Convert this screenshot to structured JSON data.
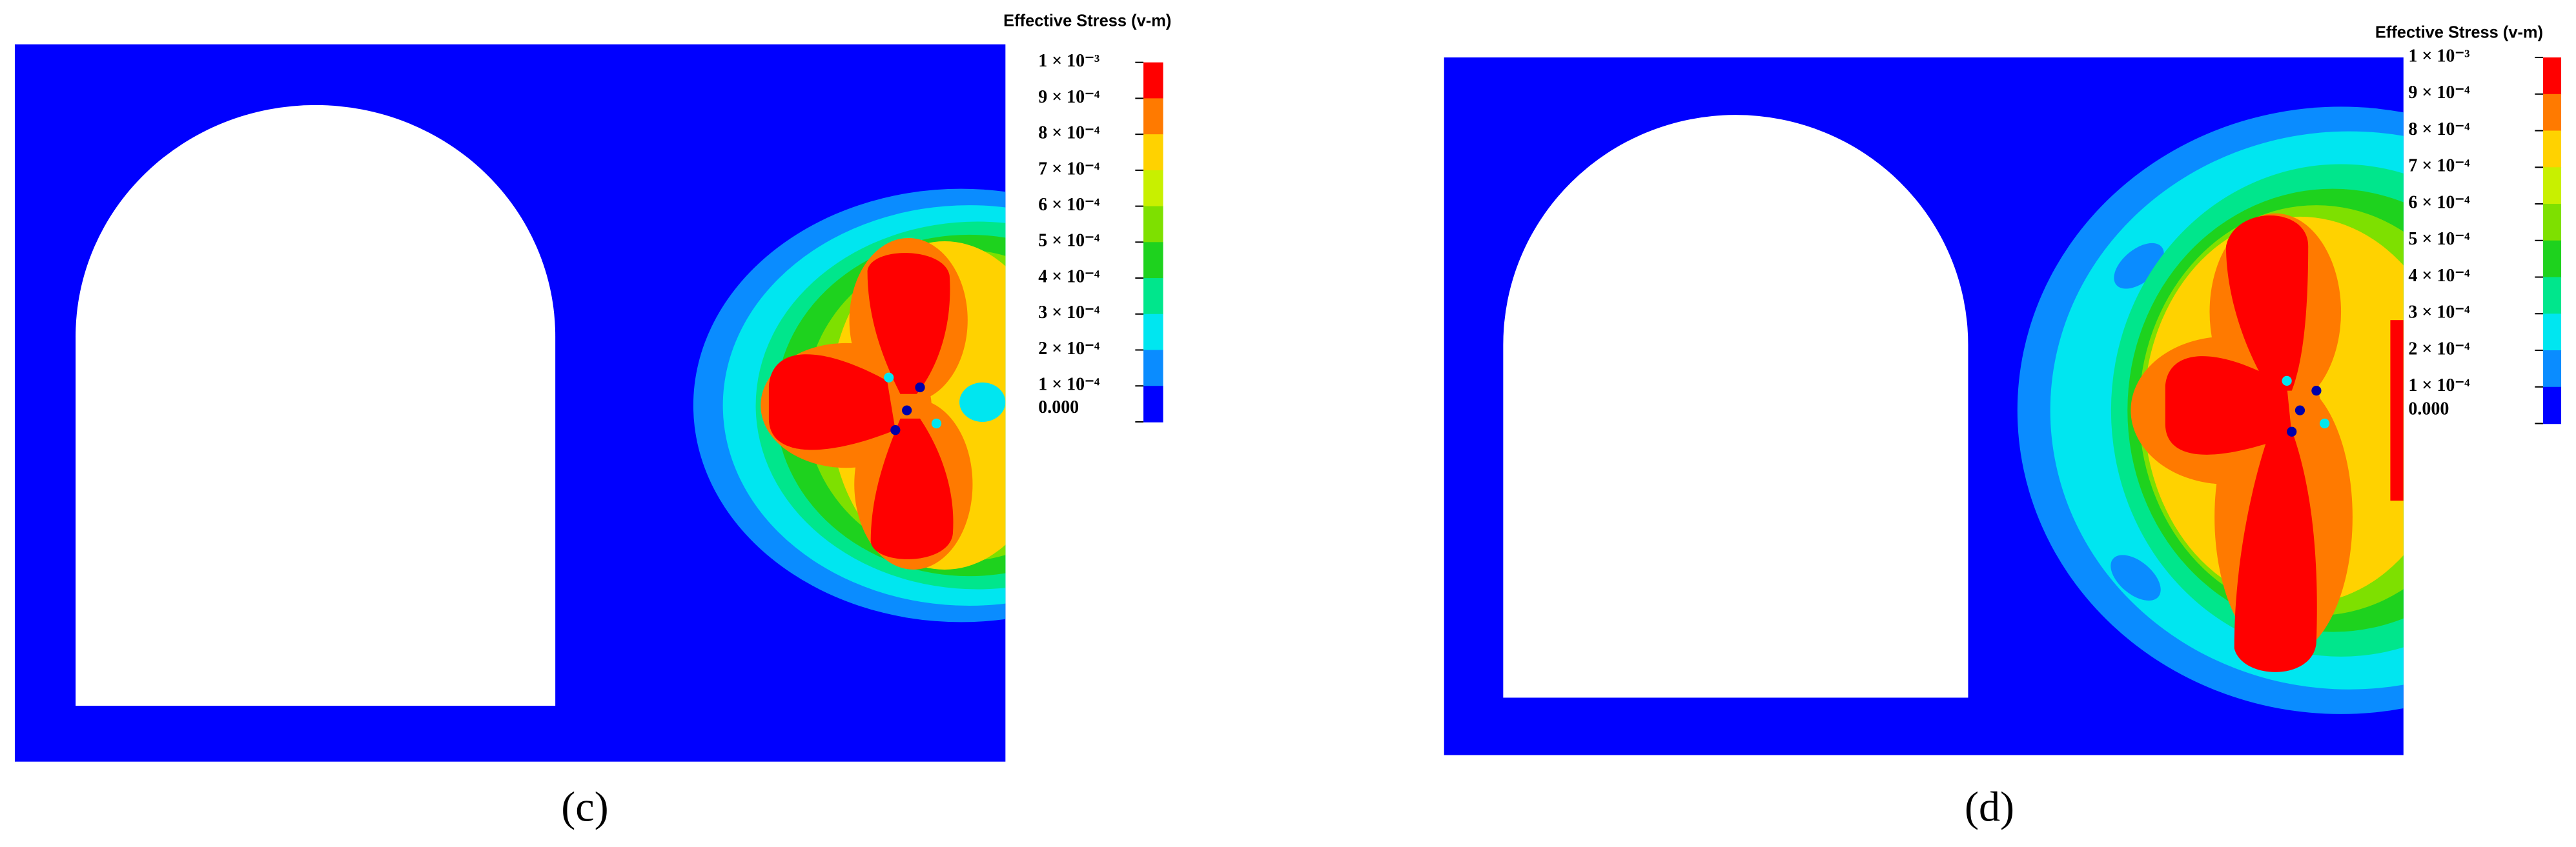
{
  "panels": [
    {
      "label": "(c)",
      "colorbar": {
        "title": "Effective Stress (v-m)",
        "labels": [
          "1 × 10⁻³",
          "9 × 10⁻⁴",
          "8 × 10⁻⁴",
          "7 × 10⁻⁴",
          "6 × 10⁻⁴",
          "5 × 10⁻⁴",
          "4 × 10⁻⁴",
          "3 × 10⁻⁴",
          "2 × 10⁻⁴",
          "1 × 10⁻⁴",
          "0.000"
        ],
        "colors": [
          "#ff0000",
          "#ff7a00",
          "#ffd200",
          "#c8f000",
          "#7ee000",
          "#1ed21e",
          "#00e68c",
          "#00e6f0",
          "#0a8cff",
          "#0000ff"
        ]
      }
    },
    {
      "label": "(d)",
      "colorbar": {
        "title": "Effective Stress (v-m)",
        "labels": [
          "1 × 10⁻³",
          "9 × 10⁻⁴",
          "8 × 10⁻⁴",
          "7 × 10⁻⁴",
          "6 × 10⁻⁴",
          "5 × 10⁻⁴",
          "4 × 10⁻⁴",
          "3 × 10⁻⁴",
          "2 × 10⁻⁴",
          "1 × 10⁻⁴",
          "0.000"
        ],
        "colors": [
          "#ff0000",
          "#ff7a00",
          "#ffd200",
          "#c8f000",
          "#7ee000",
          "#1ed21e",
          "#00e68c",
          "#00e6f0",
          "#0a8cff",
          "#0000ff"
        ]
      }
    }
  ]
}
